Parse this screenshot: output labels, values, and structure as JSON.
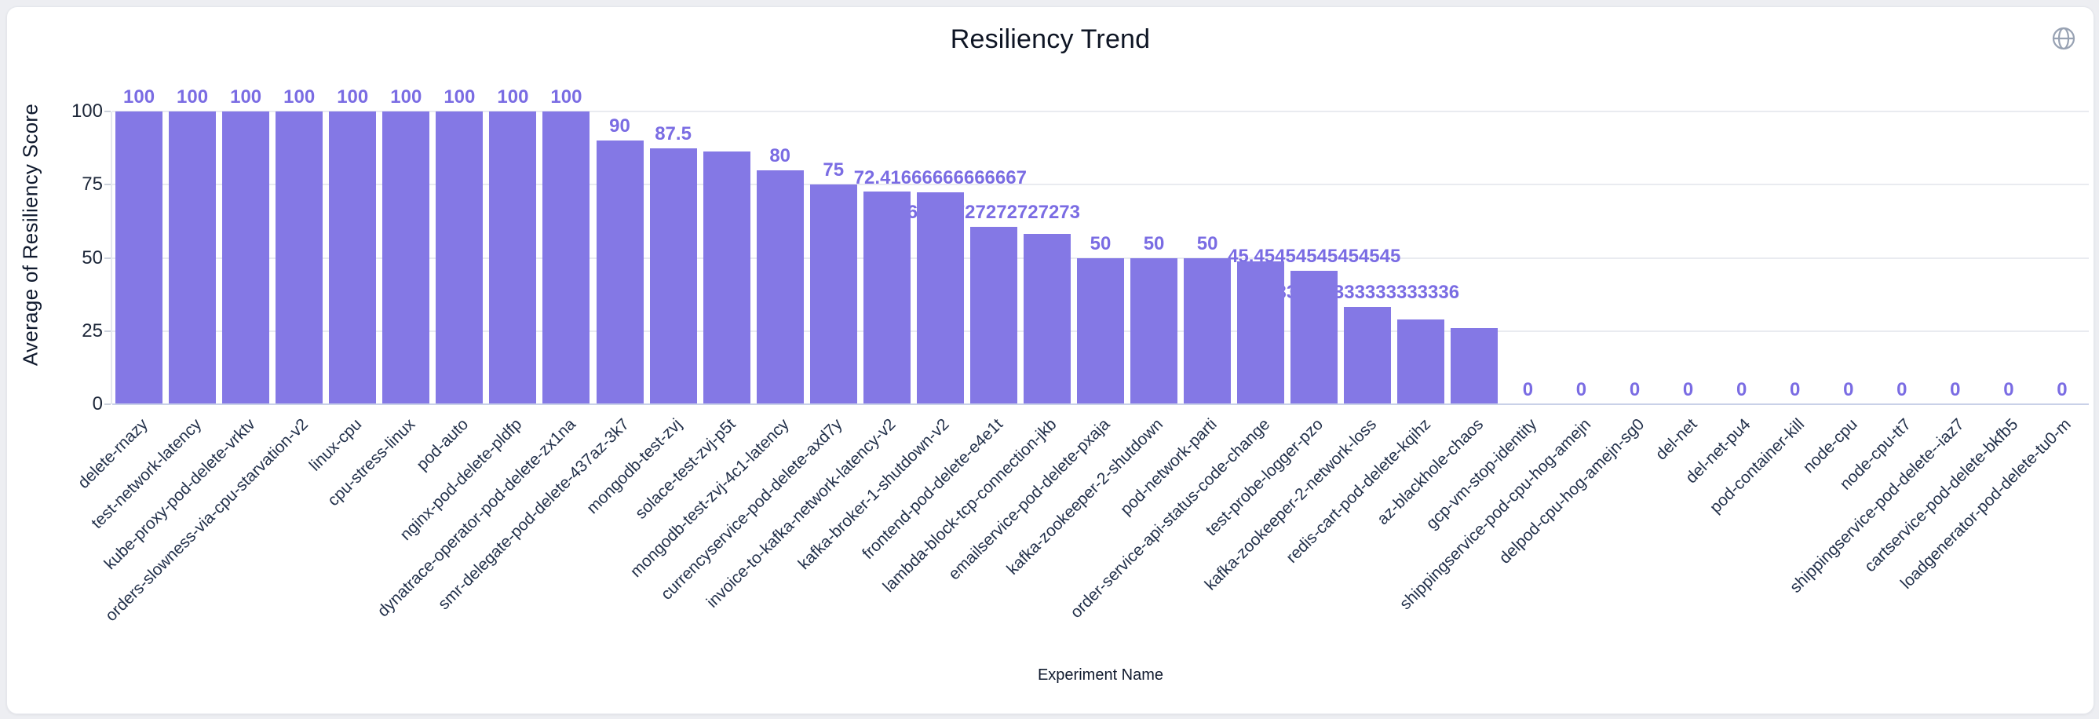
{
  "title": "Resiliency Trend",
  "header": {
    "globe_icon": "globe"
  },
  "chart_data": {
    "type": "bar",
    "title": "Resiliency Trend",
    "xlabel": "Experiment Name",
    "ylabel": "Average of Resiliency Score",
    "ylim": [
      0,
      100
    ],
    "yticks": [
      0,
      25,
      50,
      75,
      100
    ],
    "grid": "horizontal",
    "bar_color": "#8478e5",
    "label_color": "#7a6ce3",
    "categories": [
      "delete-rnazy",
      "test-network-latency",
      "kube-proxy-pod-delete-vrktv",
      "orders-slowness-via-cpu-starvation-v2",
      "linux-cpu",
      "cpu-stress-linux",
      "pod-auto",
      "nginx-pod-delete-pldfp",
      "dynatrace-operator-pod-delete-zx1na",
      "smr-delegate-pod-delete-437az-3k7",
      "mongodb-test-zvj",
      "solace-test-zvj-p5t",
      "mongodb-test-zvj-4c1-latency",
      "currencyservice-pod-delete-axd7y",
      "invoice-to-kafka-network-latency-v2",
      "kafka-broker-1-shutdown-v2",
      "frontend-pod-delete-e4e1t",
      "lambda-block-tcp-connection-jkb",
      "emailservice-pod-delete-pxaja",
      "kafka-zookeeper-2-shutdown",
      "pod-network-parti",
      "order-service-api-status-code-change",
      "test-probe-logger-pzo",
      "kafka-zookeeper-2-network-loss",
      "redis-cart-pod-delete-kqihz",
      "az-blackhole-chaos",
      "gcp-vm-stop-identity",
      "shippingservice-pod-cpu-hog-amejn",
      "delpod-cpu-hog-amejn-sg0",
      "del-net",
      "del-net-pu4",
      "pod-container-kill",
      "node-cpu",
      "node-cpu-tt7",
      "shippingservice-pod-delete--iaz7",
      "cartservice-pod-delete-bkfb5",
      "loadgenerator-pod-delete-tu0-m"
    ],
    "values": [
      100,
      100,
      100,
      100,
      100,
      100,
      100,
      100,
      100,
      90,
      87.5,
      86.4,
      80,
      75,
      72.7,
      72.41666666666667,
      60.72727272727273,
      58.3,
      50,
      50,
      50,
      48.8,
      45.45454545454545,
      33.333333333333336,
      29,
      26,
      0,
      0,
      0,
      0,
      0,
      0,
      0,
      0,
      0,
      0,
      0
    ],
    "bar_labels": [
      "100",
      "100",
      "100",
      "100",
      "100",
      "100",
      "100",
      "100",
      "100",
      "90",
      "87.5",
      "",
      "80",
      "75",
      "",
      "72.41666666666667",
      "60.72727272727273",
      "",
      "50",
      "50",
      "50",
      "",
      "45.45454545454545",
      "33.333333333333336",
      "",
      "",
      "0",
      "0",
      "0",
      "0",
      "0",
      "0",
      "0",
      "0",
      "0",
      "0",
      "0"
    ]
  }
}
